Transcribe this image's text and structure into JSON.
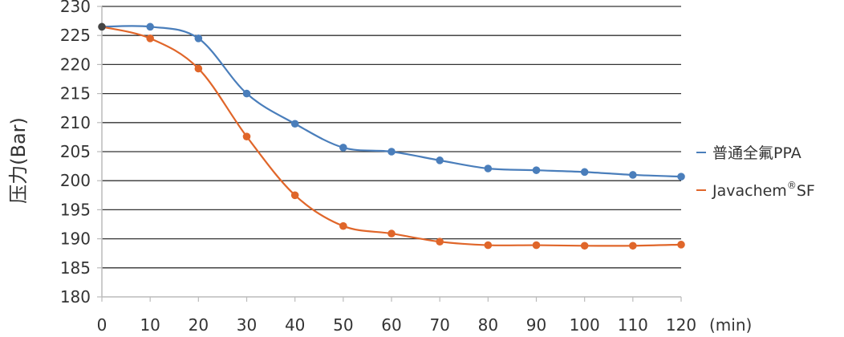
{
  "chart_data": {
    "type": "line",
    "title": "",
    "xlabel": "(min)",
    "ylabel": "压力(Bar)",
    "x": [
      0,
      10,
      20,
      30,
      40,
      50,
      60,
      70,
      80,
      90,
      100,
      110,
      120
    ],
    "x_tick_labels": [
      "0",
      "10",
      "20",
      "30",
      "40",
      "50",
      "60",
      "70",
      "80",
      "90",
      "100",
      "110",
      "120"
    ],
    "y_tick_labels": [
      "180",
      "185",
      "190",
      "195",
      "200",
      "205",
      "210",
      "215",
      "220",
      "225",
      "230"
    ],
    "xlim": [
      0,
      120
    ],
    "ylim": [
      180,
      230
    ],
    "grid": true,
    "legend_position": "right",
    "series": [
      {
        "name": "普通全氟PPA",
        "color": "#4a7ebb",
        "values": [
          226.5,
          226.5,
          224.5,
          215.0,
          209.8,
          205.7,
          205.0,
          203.5,
          202.1,
          201.8,
          201.5,
          201.0,
          200.7
        ]
      },
      {
        "name": "Javachem",
        "name_superscript": "®",
        "name_suffix": "SF",
        "color": "#e0662a",
        "values": [
          226.5,
          224.5,
          219.3,
          207.6,
          197.5,
          192.2,
          190.9,
          189.5,
          188.9,
          188.9,
          188.8,
          188.8,
          189.0
        ]
      }
    ],
    "start_point_color": "#444444",
    "axis_color": "#bbbbbb",
    "grid_color": "#333333"
  }
}
